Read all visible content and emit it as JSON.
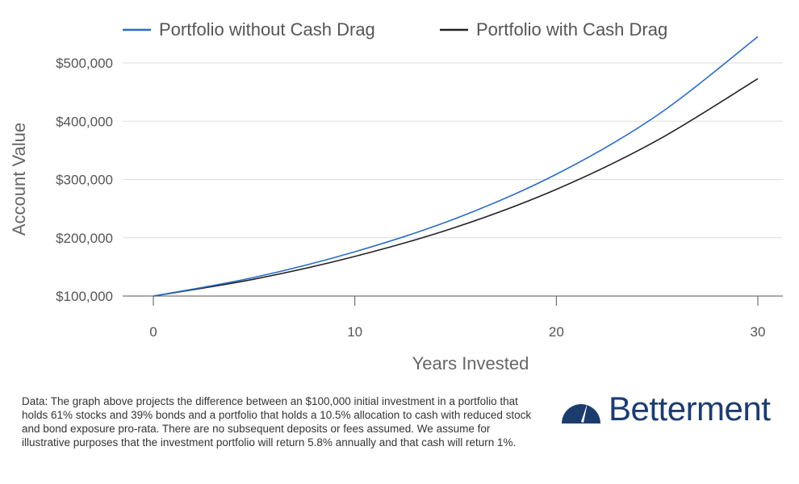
{
  "chart_data": {
    "type": "line",
    "xlabel": "Years Invested",
    "ylabel": "Account Value",
    "xlim": [
      0,
      30
    ],
    "ylim": [
      100000,
      500000
    ],
    "x_ticks": [
      0,
      10,
      20,
      30
    ],
    "x_tick_labels": [
      "0",
      "10",
      "20",
      "30"
    ],
    "y_ticks": [
      100000,
      200000,
      300000,
      400000,
      500000
    ],
    "y_tick_labels": [
      "$100,000",
      "$200,000",
      "$300,000",
      "$400,000",
      "$500,000"
    ],
    "grid": "horizontal",
    "legend_position": "top",
    "x": [
      0,
      5,
      10,
      15,
      20,
      25,
      30
    ],
    "series": [
      {
        "name": "Portfolio without Cash Drag",
        "color": "#2b6cc4",
        "values": [
          100000,
          132000,
          176000,
          233000,
          309000,
          410000,
          545000
        ]
      },
      {
        "name": "Portfolio with Cash Drag",
        "color": "#222222",
        "values": [
          100000,
          129000,
          168000,
          218000,
          283000,
          367000,
          473000
        ]
      }
    ]
  },
  "footnote": "Data: The graph above projects the difference between an $100,000 initial investment in a portfolio that holds 61% stocks and 39% bonds and a portfolio that holds a 10.5% allocation to cash with reduced stock and bond exposure pro-rata. There are no subsequent deposits or fees assumed. We assume for illustrative purposes that the investment portfolio will return 5.8% annually and that cash will return 1%.",
  "brand": {
    "name": "Betterment",
    "logo_icon": "speedometer-icon",
    "color": "#1d3c6e"
  }
}
